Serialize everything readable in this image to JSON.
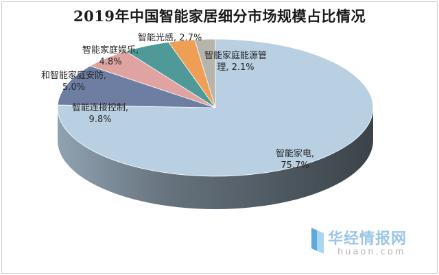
{
  "chart_data": {
    "type": "pie",
    "title": "2019年中国智能家居细分市场规模占比情况",
    "style": "3d",
    "categories": [
      "智能家电",
      "智能连接控制",
      "和智能家庭安防",
      "智能家庭娱乐",
      "智能光感",
      "智能家庭能源管理"
    ],
    "values": [
      75.7,
      9.8,
      5.0,
      4.8,
      2.7,
      2.1
    ],
    "unit": "%",
    "data_labels": [
      {
        "name": "智能家电,",
        "value": "75.7%"
      },
      {
        "name": "智能连接控制,",
        "value": "9.8%"
      },
      {
        "name": "和智能家庭安防,",
        "value": "5.0%"
      },
      {
        "name": "智能家庭娱乐,",
        "value": "4.8%"
      },
      {
        "name": "智能光感,",
        "value": "2.7%"
      },
      {
        "name": "智能家庭能源管",
        "value": "理, 2.1%"
      }
    ],
    "colors": [
      "#b9d0e3",
      "#6e7ea3",
      "#dfa4a2",
      "#4f9a98",
      "#ef9e56",
      "#b5b5ac"
    ],
    "legend": "none"
  },
  "watermark": {
    "name": "华经情报网",
    "url": "huaon.com",
    "colors": {
      "logo_light": "#a8d6ee",
      "logo_dark": "#5fa8dc",
      "text": "#9cc6e6"
    }
  }
}
